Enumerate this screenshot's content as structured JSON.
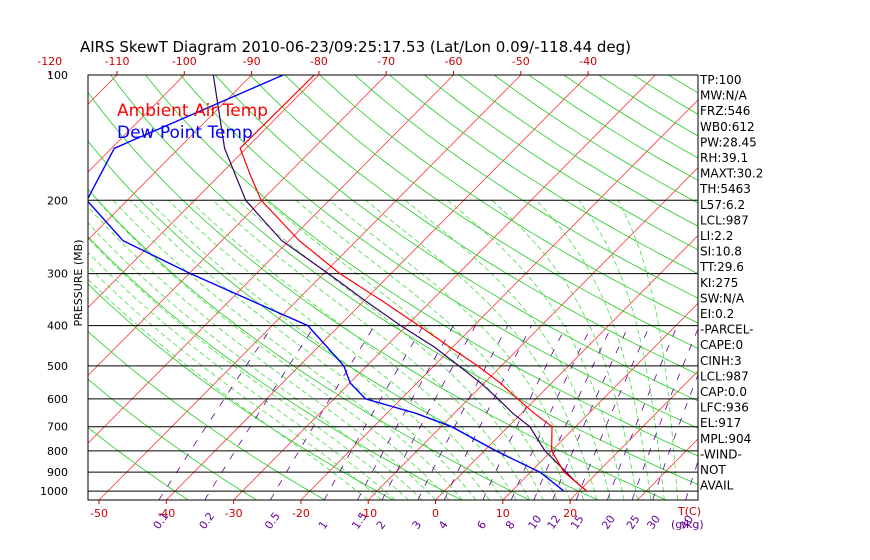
{
  "chart_data": {
    "type": "line",
    "title": "AIRS SkewT Diagram 2010-06-23/09:25:17.53 (Lat/Lon 0.09/-118.44 deg)",
    "ylabel": "PRESSURE (MB)",
    "x_unit_label": "T(C)",
    "mixing_unit_label": "(g/kg)",
    "y_scale": "log",
    "ylim": [
      100,
      1050
    ],
    "pressure_ticks": [
      100,
      200,
      300,
      400,
      500,
      600,
      700,
      800,
      900,
      1000
    ],
    "bottom_temp_ticks": [
      -50,
      -40,
      -30,
      -20,
      -10,
      0,
      10,
      20
    ],
    "top_temp_ticks": [
      -120,
      -110,
      -100,
      -90,
      -80,
      -70,
      -60,
      -50,
      -40
    ],
    "mixing_ratio_labels": [
      "0.1",
      "0.2",
      "0.5",
      "1",
      "1.5",
      "2",
      "3",
      "4",
      "6",
      "8",
      "10",
      "12",
      "15",
      "20",
      "25",
      "30",
      "40"
    ],
    "legend": [
      {
        "name": "Ambient Air Temp",
        "color": "#ff0000"
      },
      {
        "name": "Dew Point Temp",
        "color": "#0000ff"
      }
    ],
    "series": [
      {
        "name": "Ambient Air Temp",
        "color": "#ff0000",
        "points": [
          {
            "p": 100,
            "t": -80.7
          },
          {
            "p": 150,
            "t": -80.9
          },
          {
            "p": 175,
            "t": -75.2
          },
          {
            "p": 200,
            "t": -70.1
          },
          {
            "p": 250,
            "t": -58.5
          },
          {
            "p": 300,
            "t": -47.6
          },
          {
            "p": 350,
            "t": -37.1
          },
          {
            "p": 400,
            "t": -28.2
          },
          {
            "p": 450,
            "t": -20.5
          },
          {
            "p": 500,
            "t": -13.5
          },
          {
            "p": 550,
            "t": -7.6
          },
          {
            "p": 600,
            "t": -2.7
          },
          {
            "p": 650,
            "t": 1.9
          },
          {
            "p": 700,
            "t": 6.5
          },
          {
            "p": 800,
            "t": 10.0
          },
          {
            "p": 900,
            "t": 15.0
          },
          {
            "p": 950,
            "t": 18.2
          },
          {
            "p": 1000,
            "t": 21.2
          }
        ]
      },
      {
        "name": "Dew Point Temp",
        "color": "#0000ff",
        "points": [
          {
            "p": 100,
            "t": -85.3
          },
          {
            "p": 150,
            "t": -99.6
          },
          {
            "p": 200,
            "t": -96.0
          },
          {
            "p": 250,
            "t": -84.7
          },
          {
            "p": 300,
            "t": -69.8
          },
          {
            "p": 350,
            "t": -56.4
          },
          {
            "p": 400,
            "t": -44.7
          },
          {
            "p": 450,
            "t": -38.7
          },
          {
            "p": 500,
            "t": -33.4
          },
          {
            "p": 550,
            "t": -29.9
          },
          {
            "p": 600,
            "t": -25.3
          },
          {
            "p": 650,
            "t": -15.7
          },
          {
            "p": 700,
            "t": -8.4
          },
          {
            "p": 800,
            "t": 1.7
          },
          {
            "p": 900,
            "t": 11.4
          },
          {
            "p": 950,
            "t": 14.7
          },
          {
            "p": 1000,
            "t": 17.8
          }
        ]
      },
      {
        "name": "Parcel",
        "color": "#330066",
        "points": [
          {
            "p": 100,
            "t": -95.7
          },
          {
            "p": 150,
            "t": -83.2
          },
          {
            "p": 200,
            "t": -72.4
          },
          {
            "p": 250,
            "t": -61.1
          },
          {
            "p": 300,
            "t": -49.3
          },
          {
            "p": 350,
            "t": -39.6
          },
          {
            "p": 400,
            "t": -30.9
          },
          {
            "p": 450,
            "t": -22.8
          },
          {
            "p": 500,
            "t": -16.3
          },
          {
            "p": 550,
            "t": -10.5
          },
          {
            "p": 600,
            "t": -5.6
          },
          {
            "p": 650,
            "t": -1.3
          },
          {
            "p": 700,
            "t": 3.2
          },
          {
            "p": 800,
            "t": 9.0
          },
          {
            "p": 900,
            "t": 15.3
          },
          {
            "p": 950,
            "t": 18.2
          },
          {
            "p": 1000,
            "t": 21.2
          }
        ]
      }
    ],
    "indices": [
      "TP:100",
      "MW:N/A",
      "FRZ:546",
      "WB0:612",
      "PW:28.45",
      "RH:39.1",
      "MAXT:30.2",
      "TH:5463",
      "L57:6.2",
      "LCL:987",
      "LI:2.2",
      "SI:10.8",
      "TT:29.6",
      "KI:275",
      "SW:N/A",
      "EI:0.2",
      "-PARCEL-",
      "CAPE:0",
      "CINH:3",
      "LCL:987",
      "CAP:0.0",
      "LFC:936",
      "EL:917",
      "MPL:904",
      "-WIND-",
      "NOT",
      "AVAIL"
    ]
  }
}
